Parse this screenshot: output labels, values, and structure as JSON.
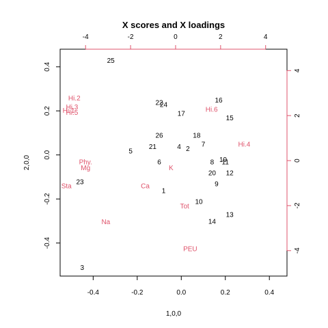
{
  "colors": {
    "scores": "#000000",
    "loadings": "#DF536B",
    "axis": "#000000"
  },
  "chart_data": {
    "type": "scatter",
    "title": "X scores and X loadings",
    "xlabel": "1,0,0",
    "ylabel": "2,0,0",
    "xlim": [
      -0.55,
      0.48
    ],
    "ylim": [
      -0.55,
      0.48
    ],
    "x_ticks": [
      "-0.4",
      "-0.2",
      "0.0",
      "0.2",
      "0.4"
    ],
    "y_ticks": [
      "-0.4",
      "-0.2",
      "0.0",
      "0.2",
      "0.4"
    ],
    "top_xlim": [
      -5.13,
      4.95
    ],
    "right_ylim": [
      -5.13,
      4.95
    ],
    "top_ticks": [
      "-4",
      "-2",
      "0",
      "2",
      "4"
    ],
    "right_ticks": [
      "-4",
      "-2",
      "0",
      "2",
      "4"
    ],
    "scores": [
      {
        "label": "25",
        "x": -0.32,
        "y": 0.43
      },
      {
        "label": "22",
        "x": -0.1,
        "y": 0.24
      },
      {
        "label": "24",
        "x": -0.08,
        "y": 0.23
      },
      {
        "label": "17",
        "x": 0.0,
        "y": 0.19
      },
      {
        "label": "16",
        "x": 0.17,
        "y": 0.25
      },
      {
        "label": "15",
        "x": 0.22,
        "y": 0.17
      },
      {
        "label": "26",
        "x": -0.1,
        "y": 0.09
      },
      {
        "label": "18",
        "x": 0.07,
        "y": 0.09
      },
      {
        "label": "7",
        "x": 0.1,
        "y": 0.05
      },
      {
        "label": "21",
        "x": -0.13,
        "y": 0.04
      },
      {
        "label": "4",
        "x": -0.01,
        "y": 0.04
      },
      {
        "label": "2",
        "x": 0.03,
        "y": 0.03
      },
      {
        "label": "5",
        "x": -0.23,
        "y": 0.02
      },
      {
        "label": "6",
        "x": -0.1,
        "y": -0.03
      },
      {
        "label": "8",
        "x": 0.14,
        "y": -0.03
      },
      {
        "label": "19",
        "x": 0.19,
        "y": -0.02
      },
      {
        "label": "11",
        "x": 0.2,
        "y": -0.03
      },
      {
        "label": "20",
        "x": 0.14,
        "y": -0.08
      },
      {
        "label": "12",
        "x": 0.22,
        "y": -0.08
      },
      {
        "label": "23",
        "x": -0.46,
        "y": -0.12
      },
      {
        "label": "9",
        "x": 0.16,
        "y": -0.13
      },
      {
        "label": "1",
        "x": -0.08,
        "y": -0.16
      },
      {
        "label": "10",
        "x": 0.08,
        "y": -0.21
      },
      {
        "label": "13",
        "x": 0.22,
        "y": -0.27
      },
      {
        "label": "14",
        "x": 0.14,
        "y": -0.3
      },
      {
        "label": "3",
        "x": -0.45,
        "y": -0.51
      }
    ],
    "loadings": [
      {
        "label": "Hi.2",
        "x": -4.5,
        "y": 2.8
      },
      {
        "label": "Hi.3",
        "x": -4.6,
        "y": 2.4
      },
      {
        "label": "Hi.1",
        "x": -4.75,
        "y": 2.25
      },
      {
        "label": "Hi.5",
        "x": -4.6,
        "y": 2.15
      },
      {
        "label": "Hi.6",
        "x": 1.6,
        "y": 2.3
      },
      {
        "label": "Hi.4",
        "x": 3.05,
        "y": 0.75
      },
      {
        "label": "Phy.",
        "x": -4.0,
        "y": -0.05
      },
      {
        "label": "Mg",
        "x": -4.0,
        "y": -0.3
      },
      {
        "label": "K",
        "x": -0.2,
        "y": -0.3
      },
      {
        "label": "Sta",
        "x": -4.85,
        "y": -1.1
      },
      {
        "label": "Ca",
        "x": -1.35,
        "y": -1.1
      },
      {
        "label": "Tot",
        "x": 0.4,
        "y": -2.0
      },
      {
        "label": "Na",
        "x": -3.1,
        "y": -2.7
      },
      {
        "label": "PEU",
        "x": 0.65,
        "y": -3.9
      }
    ]
  }
}
